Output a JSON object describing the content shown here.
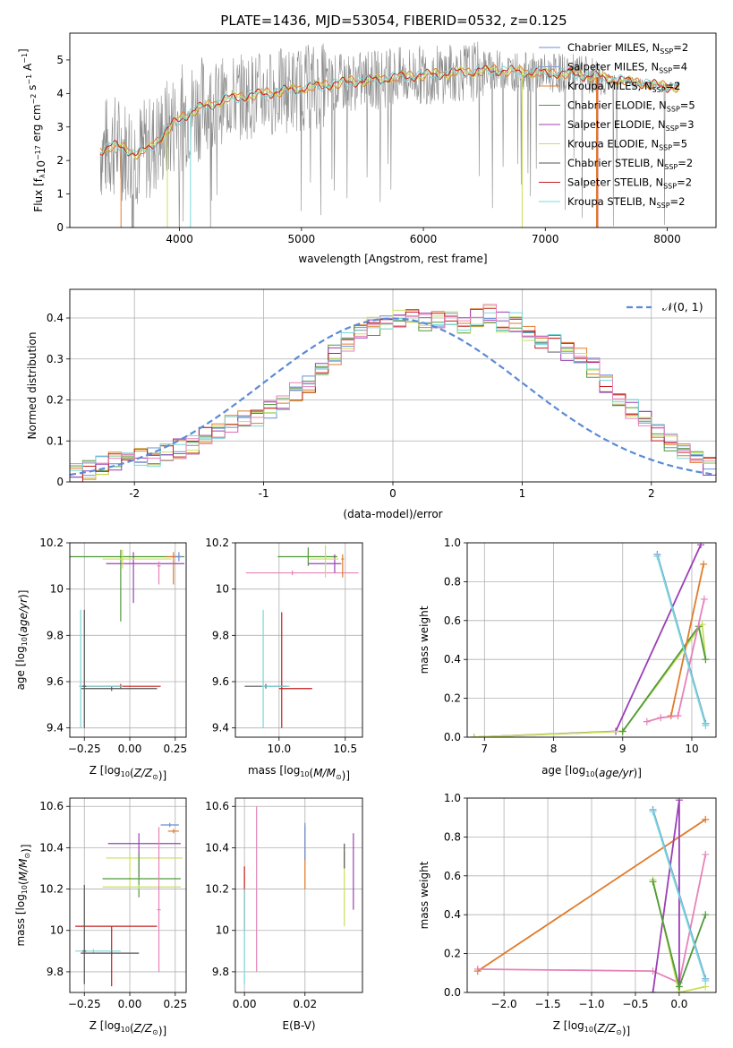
{
  "figure": {
    "title": "PLATE=1436, MJD=53054, FIBERID=0532, z=0.125"
  },
  "colors": {
    "Chabrier MILES": "#6b8fd6",
    "Salpeter MILES": "#8aa0d8",
    "Kroupa MILES": "#e07b2a",
    "Chabrier ELODIE": "#4f9a3a",
    "Salpeter ELODIE": "#9b3fb5",
    "Kroupa ELODIE": "#c8e05a",
    "Chabrier STELIB": "#555555",
    "Salpeter STELIB": "#c41e1e",
    "Kroupa STELIB": "#78d8d8",
    "pink": "#e683b8",
    "gauss": "#5b8bd6",
    "grid": "#b0b0b0"
  },
  "chart_data": [
    {
      "id": "spectrum",
      "type": "line",
      "xlabel": "wavelength [Angstrom, rest frame]",
      "ylabel": "Flux [f_λ10^-17 erg cm^-2 s^-1 A^-1]",
      "xlim": [
        3100,
        8400
      ],
      "ylim": [
        0,
        5.8
      ],
      "xticks": [
        4000,
        5000,
        6000,
        7000,
        8000
      ],
      "yticks": [
        0,
        1,
        2,
        3,
        4,
        5
      ],
      "legend_position": "top-right",
      "legend": [
        {
          "label": "Chabrier MILES, N_SSP=2",
          "color_key": "Chabrier MILES"
        },
        {
          "label": "Salpeter MILES, N_SSP=4",
          "color_key": "Salpeter MILES"
        },
        {
          "label": "Kroupa MILES, N_SSP=2",
          "color_key": "Kroupa MILES"
        },
        {
          "label": "Chabrier ELODIE, N_SSP=5",
          "color_key": "Chabrier ELODIE"
        },
        {
          "label": "Salpeter ELODIE, N_SSP=3",
          "color_key": "Salpeter ELODIE"
        },
        {
          "label": "Kroupa ELODIE, N_SSP=5",
          "color_key": "Kroupa ELODIE"
        },
        {
          "label": "Chabrier STELIB, N_SSP=2",
          "color_key": "Chabrier STELIB"
        },
        {
          "label": "Salpeter STELIB, N_SSP=2",
          "color_key": "Salpeter STELIB"
        },
        {
          "label": "Kroupa STELIB, N_SSP=2",
          "color_key": "Kroupa STELIB"
        }
      ],
      "continuum": [
        [
          3350,
          2.3
        ],
        [
          3450,
          2.45
        ],
        [
          3550,
          2.35
        ],
        [
          3650,
          2.2
        ],
        [
          3750,
          2.35
        ],
        [
          3850,
          2.7
        ],
        [
          3950,
          3.1
        ],
        [
          4050,
          3.35
        ],
        [
          4150,
          3.55
        ],
        [
          4250,
          3.65
        ],
        [
          4400,
          3.85
        ],
        [
          4600,
          3.95
        ],
        [
          4800,
          4.05
        ],
        [
          5000,
          4.15
        ],
        [
          5200,
          4.25
        ],
        [
          5400,
          4.35
        ],
        [
          5600,
          4.4
        ],
        [
          5800,
          4.5
        ],
        [
          6000,
          4.55
        ],
        [
          6200,
          4.6
        ],
        [
          6400,
          4.65
        ],
        [
          6600,
          4.7
        ],
        [
          6800,
          4.65
        ],
        [
          7000,
          4.6
        ],
        [
          7200,
          4.6
        ],
        [
          7400,
          4.5
        ],
        [
          7600,
          4.4
        ],
        [
          7800,
          4.3
        ],
        [
          8000,
          4.2
        ],
        [
          8100,
          4.2
        ]
      ]
    },
    {
      "id": "residuals",
      "type": "step",
      "xlabel": "(data-model)/error",
      "ylabel": "Normed distribution",
      "xlim": [
        -2.5,
        2.5
      ],
      "ylim": [
        0,
        0.47
      ],
      "xticks": [
        -2,
        -1,
        0,
        1,
        2
      ],
      "yticks": [
        0.0,
        0.1,
        0.2,
        0.3,
        0.4
      ],
      "legend_position": "top-right",
      "legend": [
        {
          "label": "𝒩(0, 1)",
          "color_key": "gauss"
        }
      ],
      "bin_width": 0.1,
      "bin_start": -2.5,
      "histogram": [
        0.02,
        0.03,
        0.04,
        0.05,
        0.05,
        0.06,
        0.06,
        0.07,
        0.08,
        0.09,
        0.11,
        0.12,
        0.14,
        0.15,
        0.16,
        0.18,
        0.19,
        0.22,
        0.24,
        0.28,
        0.31,
        0.34,
        0.36,
        0.38,
        0.39,
        0.4,
        0.4,
        0.39,
        0.4,
        0.4,
        0.38,
        0.4,
        0.41,
        0.39,
        0.39,
        0.37,
        0.35,
        0.34,
        0.32,
        0.31,
        0.28,
        0.24,
        0.21,
        0.18,
        0.16,
        0.12,
        0.1,
        0.08,
        0.06,
        0.04
      ]
    },
    {
      "id": "age-vs-Z",
      "type": "errorbar",
      "xlabel": "Z [log10(Z/Z☉)]",
      "ylabel": "age  [log10(age/yr)]",
      "xlim": [
        -0.33,
        0.31
      ],
      "ylim": [
        9.36,
        10.2
      ],
      "xticks": [
        -0.25,
        0.0,
        0.25
      ],
      "xticklabels": [
        "−0.25",
        "0.00",
        "0.25"
      ],
      "yticks": [
        9.4,
        9.6,
        9.8,
        10.0,
        10.2
      ],
      "bars": [
        {
          "c": "Chabrier ELODIE",
          "x": -0.05,
          "xerr": [
            0.35,
            0.35
          ],
          "y": 10.14,
          "yerr": [
            0.28,
            0.03
          ]
        },
        {
          "c": "Salpeter ELODIE",
          "x": 0.02,
          "xerr": [
            0.15,
            0.28
          ],
          "y": 10.11,
          "yerr": [
            0.17,
            0.05
          ]
        },
        {
          "c": "Kroupa ELODIE",
          "x": -0.04,
          "xerr": [
            0.11,
            0.27
          ],
          "y": 10.13,
          "yerr": [
            0.04,
            0.04
          ]
        },
        {
          "c": "Kroupa MILES",
          "x": 0.24,
          "xerr": [
            0.04,
            0.04
          ],
          "y": 10.14,
          "yerr": [
            0.12,
            0.02
          ]
        },
        {
          "c": "Chabrier MILES",
          "x": 0.27,
          "xerr": [
            0.02,
            0.02
          ],
          "y": 10.14,
          "yerr": [
            0.02,
            0.02
          ]
        },
        {
          "c": "Salpeter STELIB",
          "x": -0.05,
          "xerr": [
            0.22,
            0.22
          ],
          "y": 9.58,
          "yerr": [
            0.01,
            0.01
          ]
        },
        {
          "c": "Chabrier STELIB",
          "x": -0.1,
          "xerr": [
            0.17,
            0.25
          ],
          "y": 9.57,
          "yerr": [
            0.01,
            0.01
          ]
        },
        {
          "c": "Kroupa STELIB",
          "x": -0.27,
          "xerr": [
            0.01,
            0.23
          ],
          "y": 9.58,
          "yerr": [
            0.18,
            0.33
          ]
        },
        {
          "c": "Chabrier STELIB",
          "x": -0.25,
          "xerr": [
            0.01,
            0.01
          ],
          "y": 9.58,
          "yerr": [
            0.18,
            0.33
          ]
        },
        {
          "c": "pink",
          "x": 0.16,
          "xerr": [
            0.01,
            0.01
          ],
          "y": 10.1,
          "yerr": [
            0.08,
            0.02
          ]
        }
      ]
    },
    {
      "id": "age-vs-mass",
      "type": "errorbar",
      "xlabel": "mass [log10(M/M☉)]",
      "xlim": [
        9.67,
        10.63
      ],
      "ylim": [
        9.36,
        10.2
      ],
      "xticks": [
        10.0,
        10.5
      ],
      "xticklabels": [
        "10.0",
        "10.5"
      ],
      "yticks": [
        9.4,
        9.6,
        9.8,
        10.0,
        10.2
      ],
      "bars": [
        {
          "c": "pink",
          "x": 10.1,
          "xerr": [
            0.35,
            0.5
          ],
          "y": 10.07,
          "yerr": [
            0.01,
            0.01
          ]
        },
        {
          "c": "Chabrier ELODIE",
          "x": 10.22,
          "xerr": [
            0.23,
            0.22
          ],
          "y": 10.14,
          "yerr": [
            0.04,
            0.04
          ]
        },
        {
          "c": "Salpeter ELODIE",
          "x": 10.42,
          "xerr": [
            0.2,
            0.05
          ],
          "y": 10.11,
          "yerr": [
            0.04,
            0.04
          ]
        },
        {
          "c": "Kroupa ELODIE",
          "x": 10.35,
          "xerr": [
            0.12,
            0.1
          ],
          "y": 10.13,
          "yerr": [
            0.08,
            0.06
          ]
        },
        {
          "c": "Kroupa MILES",
          "x": 10.48,
          "xerr": [
            0.01,
            0.01
          ],
          "y": 10.13,
          "yerr": [
            0.08,
            0.02
          ]
        },
        {
          "c": "Salpeter STELIB",
          "x": 10.02,
          "xerr": [
            0.02,
            0.23
          ],
          "y": 9.57,
          "yerr": [
            0.17,
            0.33
          ]
        },
        {
          "c": "Chabrier STELIB",
          "x": 9.9,
          "xerr": [
            0.16,
            0.16
          ],
          "y": 9.58,
          "yerr": [
            0.01,
            0.01
          ]
        },
        {
          "c": "Kroupa STELIB",
          "x": 9.88,
          "xerr": [
            0.01,
            0.2
          ],
          "y": 9.58,
          "yerr": [
            0.18,
            0.33
          ]
        }
      ]
    },
    {
      "id": "massweight-vs-age",
      "type": "line",
      "xlabel": "age  [log10(age/yr)]",
      "ylabel": "mass weight",
      "xlim": [
        6.75,
        10.35
      ],
      "ylim": [
        0,
        1
      ],
      "xticks": [
        7,
        8,
        9,
        10
      ],
      "yticks": [
        0.0,
        0.2,
        0.4,
        0.6,
        0.8,
        1.0
      ],
      "yticklabels": [
        "0.0",
        "0.2",
        "0.4",
        "0.6",
        "0.8",
        "1.0"
      ],
      "series": [
        {
          "c": "Salpeter ELODIE",
          "x": [
            6.85,
            8.9,
            10.13
          ],
          "y": [
            0.0,
            0.03,
            0.99
          ]
        },
        {
          "c": "Kroupa ELODIE",
          "x": [
            6.85,
            9.0,
            10.15,
            10.2
          ],
          "y": [
            0.0,
            0.03,
            0.58,
            0.4
          ]
        },
        {
          "c": "Chabrier ELODIE",
          "x": [
            9.0,
            10.1,
            10.2
          ],
          "y": [
            0.03,
            0.57,
            0.4
          ]
        },
        {
          "c": "Kroupa MILES",
          "x": [
            9.7,
            10.17
          ],
          "y": [
            0.11,
            0.89
          ]
        },
        {
          "c": "pink",
          "x": [
            9.35,
            9.55,
            9.8,
            10.18
          ],
          "y": [
            0.08,
            0.1,
            0.11,
            0.71
          ]
        },
        {
          "c": "Chabrier MILES",
          "x": [
            9.5,
            10.2
          ],
          "y": [
            0.94,
            0.07
          ]
        },
        {
          "c": "Kroupa STELIB",
          "x": [
            9.5,
            10.2
          ],
          "y": [
            0.93,
            0.06
          ]
        }
      ]
    },
    {
      "id": "mass-vs-Z",
      "type": "errorbar",
      "xlabel": "Z [log10(Z/Z☉)]",
      "ylabel": "mass [log10(M/M☉)]",
      "xlim": [
        -0.33,
        0.31
      ],
      "ylim": [
        9.7,
        10.64
      ],
      "xticks": [
        -0.25,
        0.0,
        0.25
      ],
      "xticklabels": [
        "−0.25",
        "0.00",
        "0.25"
      ],
      "yticks": [
        9.8,
        10.0,
        10.2,
        10.4,
        10.6
      ],
      "bars": [
        {
          "c": "Chabrier MILES",
          "x": 0.22,
          "xerr": [
            0.05,
            0.05
          ],
          "y": 10.51,
          "yerr": [
            0.01,
            0.01
          ]
        },
        {
          "c": "Kroupa MILES",
          "x": 0.24,
          "xerr": [
            0.03,
            0.03
          ],
          "y": 10.48,
          "yerr": [
            0.01,
            0.01
          ]
        },
        {
          "c": "Salpeter ELODIE",
          "x": 0.05,
          "xerr": [
            0.17,
            0.23
          ],
          "y": 10.42,
          "yerr": [
            0.16,
            0.05
          ]
        },
        {
          "c": "Kroupa ELODIE",
          "x": 0.0,
          "xerr": [
            0.13,
            0.29
          ],
          "y": 10.35,
          "yerr": [
            0.14,
            0.02
          ]
        },
        {
          "c": "Chabrier ELODIE",
          "x": 0.05,
          "xerr": [
            0.2,
            0.23
          ],
          "y": 10.25,
          "yerr": [
            0.09,
            0.12
          ]
        },
        {
          "c": "Kroupa ELODIE",
          "x": 0.05,
          "xerr": [
            0.2,
            0.23
          ],
          "y": 10.21,
          "yerr": [
            0.01,
            0.01
          ]
        },
        {
          "c": "Salpeter STELIB",
          "x": -0.1,
          "xerr": [
            0.2,
            0.25
          ],
          "y": 10.02,
          "yerr": [
            0.29,
            0.0
          ]
        },
        {
          "c": "Kroupa STELIB",
          "x": -0.2,
          "xerr": [
            0.1,
            0.15
          ],
          "y": 9.9,
          "yerr": [
            0.01,
            0.01
          ]
        },
        {
          "c": "Chabrier STELIB",
          "x": -0.1,
          "xerr": [
            0.17,
            0.15
          ],
          "y": 9.89,
          "yerr": [
            0.01,
            0.01
          ]
        },
        {
          "c": "Chabrier STELIB",
          "x": -0.25,
          "xerr": [
            0.01,
            0.01
          ],
          "y": 9.9,
          "yerr": [
            0.16,
            0.32
          ]
        },
        {
          "c": "pink",
          "x": 0.16,
          "xerr": [
            0.01,
            0.01
          ],
          "y": 10.1,
          "yerr": [
            0.3,
            0.4
          ]
        }
      ]
    },
    {
      "id": "mass-vs-ebv",
      "type": "errorbar",
      "xlabel": "E(B-V)",
      "xlim": [
        -0.003,
        0.039
      ],
      "ylim": [
        9.7,
        10.64
      ],
      "xticks": [
        0.0,
        0.02
      ],
      "xticklabels": [
        "0.00",
        "0.02"
      ],
      "yticks": [
        9.8,
        10.0,
        10.2,
        10.4,
        10.6
      ],
      "bars": [
        {
          "c": "Salpeter STELIB",
          "x": 0.0,
          "xerr": [
            0,
            0
          ],
          "y": 10.02,
          "yerr": [
            0.02,
            0.29
          ]
        },
        {
          "c": "Kroupa STELIB",
          "x": 0.0,
          "xerr": [
            0,
            0
          ],
          "y": 9.9,
          "yerr": [
            0.16,
            0.3
          ]
        },
        {
          "c": "pink",
          "x": 0.004,
          "xerr": [
            0,
            0
          ],
          "y": 10.2,
          "yerr": [
            0.4,
            0.4
          ]
        },
        {
          "c": "Kroupa MILES",
          "x": 0.02,
          "xerr": [
            0,
            0
          ],
          "y": 10.35,
          "yerr": [
            0.15,
            0.15
          ]
        },
        {
          "c": "Chabrier MILES",
          "x": 0.02,
          "xerr": [
            0,
            0
          ],
          "y": 10.42,
          "yerr": [
            0.08,
            0.1
          ]
        },
        {
          "c": "Kroupa ELODIE",
          "x": 0.033,
          "xerr": [
            0,
            0
          ],
          "y": 10.2,
          "yerr": [
            0.18,
            0.18
          ]
        },
        {
          "c": "Chabrier STELIB",
          "x": 0.033,
          "xerr": [
            0,
            0
          ],
          "y": 10.35,
          "yerr": [
            0.05,
            0.07
          ]
        },
        {
          "c": "Salpeter ELODIE",
          "x": 0.036,
          "xerr": [
            0,
            0
          ],
          "y": 10.3,
          "yerr": [
            0.2,
            0.17
          ]
        }
      ]
    },
    {
      "id": "massweight-vs-Z",
      "type": "line",
      "xlabel": "Z [log10(Z/Z☉)]",
      "ylabel": "mass weight",
      "xlim": [
        -2.42,
        0.42
      ],
      "ylim": [
        0,
        1
      ],
      "xticks": [
        -2.0,
        -1.5,
        -1.0,
        -0.5,
        0.0
      ],
      "xticklabels": [
        "−2.0",
        "−1.5",
        "−1.0",
        "−0.5",
        "0.0"
      ],
      "yticks": [
        0.0,
        0.2,
        0.4,
        0.6,
        0.8,
        1.0
      ],
      "yticklabels": [
        "0.0",
        "0.2",
        "0.4",
        "0.6",
        "0.8",
        "1.0"
      ],
      "series": [
        {
          "c": "Kroupa MILES",
          "x": [
            -2.3,
            0.3
          ],
          "y": [
            0.11,
            0.89
          ]
        },
        {
          "c": "pink",
          "x": [
            -2.3,
            -0.3,
            0.0,
            0.3
          ],
          "y": [
            0.12,
            0.11,
            0.05,
            0.71
          ]
        },
        {
          "c": "Salpeter ELODIE",
          "x": [
            -0.3,
            0.0,
            0.0
          ],
          "y": [
            0.0,
            0.99,
            0.0
          ]
        },
        {
          "c": "Kroupa ELODIE",
          "x": [
            -0.3,
            0.0,
            0.3
          ],
          "y": [
            0.58,
            0.0,
            0.03
          ]
        },
        {
          "c": "Chabrier ELODIE",
          "x": [
            -0.3,
            0.0,
            0.3
          ],
          "y": [
            0.57,
            0.03,
            0.4
          ]
        },
        {
          "c": "Chabrier MILES",
          "x": [
            -0.3,
            0.3
          ],
          "y": [
            0.94,
            0.07
          ]
        },
        {
          "c": "Kroupa STELIB",
          "x": [
            -0.3,
            0.3
          ],
          "y": [
            0.93,
            0.06
          ]
        }
      ]
    }
  ]
}
